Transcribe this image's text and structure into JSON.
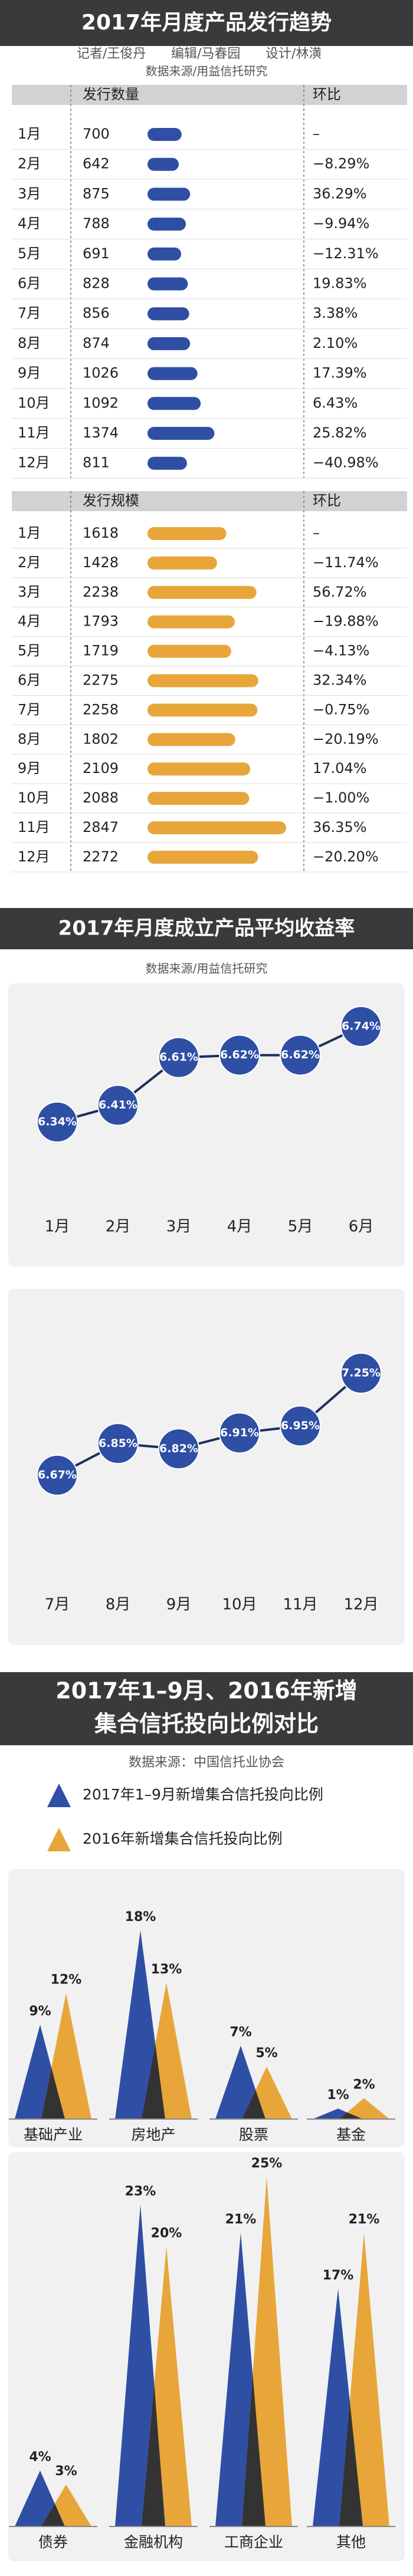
{
  "header": {
    "title": "2017年月度产品发行趋势",
    "credits": [
      "记者/王俊丹",
      "编辑/马春园",
      "设计/林潢"
    ],
    "source": "数据来源/用益信托研究"
  },
  "section2": {
    "title": "2017年月度成立产品平均收益率",
    "source": "数据来源/用益信托研究"
  },
  "section3": {
    "title_lines": [
      "2017年1–9月、2016年新增",
      "集合信托投向比例对比"
    ],
    "source": "数据来源：中国信托业协会"
  },
  "chart_data": [
    {
      "type": "bar",
      "column_headers": [
        "发行数量",
        "环比"
      ],
      "categories": [
        "1月",
        "2月",
        "3月",
        "4月",
        "5月",
        "6月",
        "7月",
        "8月",
        "9月",
        "10月",
        "11月",
        "12月"
      ],
      "values": [
        700,
        642,
        875,
        788,
        691,
        828,
        856,
        874,
        1026,
        1092,
        1374,
        811
      ],
      "changes": [
        "–",
        "−8.29%",
        "36.29%",
        "−9.94%",
        "−12.31%",
        "19.83%",
        "3.38%",
        "2.10%",
        "17.39%",
        "6.43%",
        "25.82%",
        "−40.98%"
      ],
      "color": "#2f4fa5"
    },
    {
      "type": "bar",
      "column_headers": [
        "发行规模",
        "环比"
      ],
      "categories": [
        "1月",
        "2月",
        "3月",
        "4月",
        "5月",
        "6月",
        "7月",
        "8月",
        "9月",
        "10月",
        "11月",
        "12月"
      ],
      "values": [
        1618,
        1428,
        2238,
        1793,
        1719,
        2275,
        2258,
        1802,
        2109,
        2088,
        2847,
        2272
      ],
      "changes": [
        "–",
        "−11.74%",
        "56.72%",
        "−19.88%",
        "−4.13%",
        "32.34%",
        "−0.75%",
        "−20.19%",
        "17.04%",
        "−1.00%",
        "36.35%",
        "−20.20%"
      ],
      "color": "#e8a63a"
    },
    {
      "type": "line",
      "categories": [
        "1月",
        "2月",
        "3月",
        "4月",
        "5月",
        "6月"
      ],
      "values": [
        6.34,
        6.41,
        6.61,
        6.62,
        6.62,
        6.74
      ],
      "value_labels": [
        "6.34%",
        "6.41%",
        "6.61%",
        "6.62%",
        "6.62%",
        "6.74%"
      ],
      "color": "#2f4fa5"
    },
    {
      "type": "line",
      "categories": [
        "7月",
        "8月",
        "9月",
        "10月",
        "11月",
        "12月"
      ],
      "values": [
        6.67,
        6.85,
        6.82,
        6.91,
        6.95,
        7.25
      ],
      "value_labels": [
        "6.67%",
        "6.85%",
        "6.82%",
        "6.91%",
        "6.95%",
        "7.25%"
      ],
      "color": "#2f4fa5"
    },
    {
      "type": "triangle",
      "categories": [
        "基础产业",
        "房地产",
        "股票",
        "基金",
        "债券",
        "金融机构",
        "工商企业",
        "其他"
      ],
      "series": [
        {
          "name": "2017年1–9月新增集合信托投向比例",
          "color": "#2f4fa5",
          "values": [
            9,
            18,
            7,
            1,
            4,
            23,
            21,
            17
          ],
          "value_labels": [
            "9%",
            "18%",
            "7%",
            "1%",
            "4%",
            "23%",
            "21%",
            "17%"
          ]
        },
        {
          "name": "2016年新增集合信托投向比例",
          "color": "#e8a63a",
          "values": [
            12,
            13,
            5,
            2,
            3,
            20,
            25,
            21
          ],
          "value_labels": [
            "12%",
            "13%",
            "5%",
            "2%",
            "3%",
            "20%",
            "25%",
            "21%"
          ]
        }
      ]
    }
  ]
}
